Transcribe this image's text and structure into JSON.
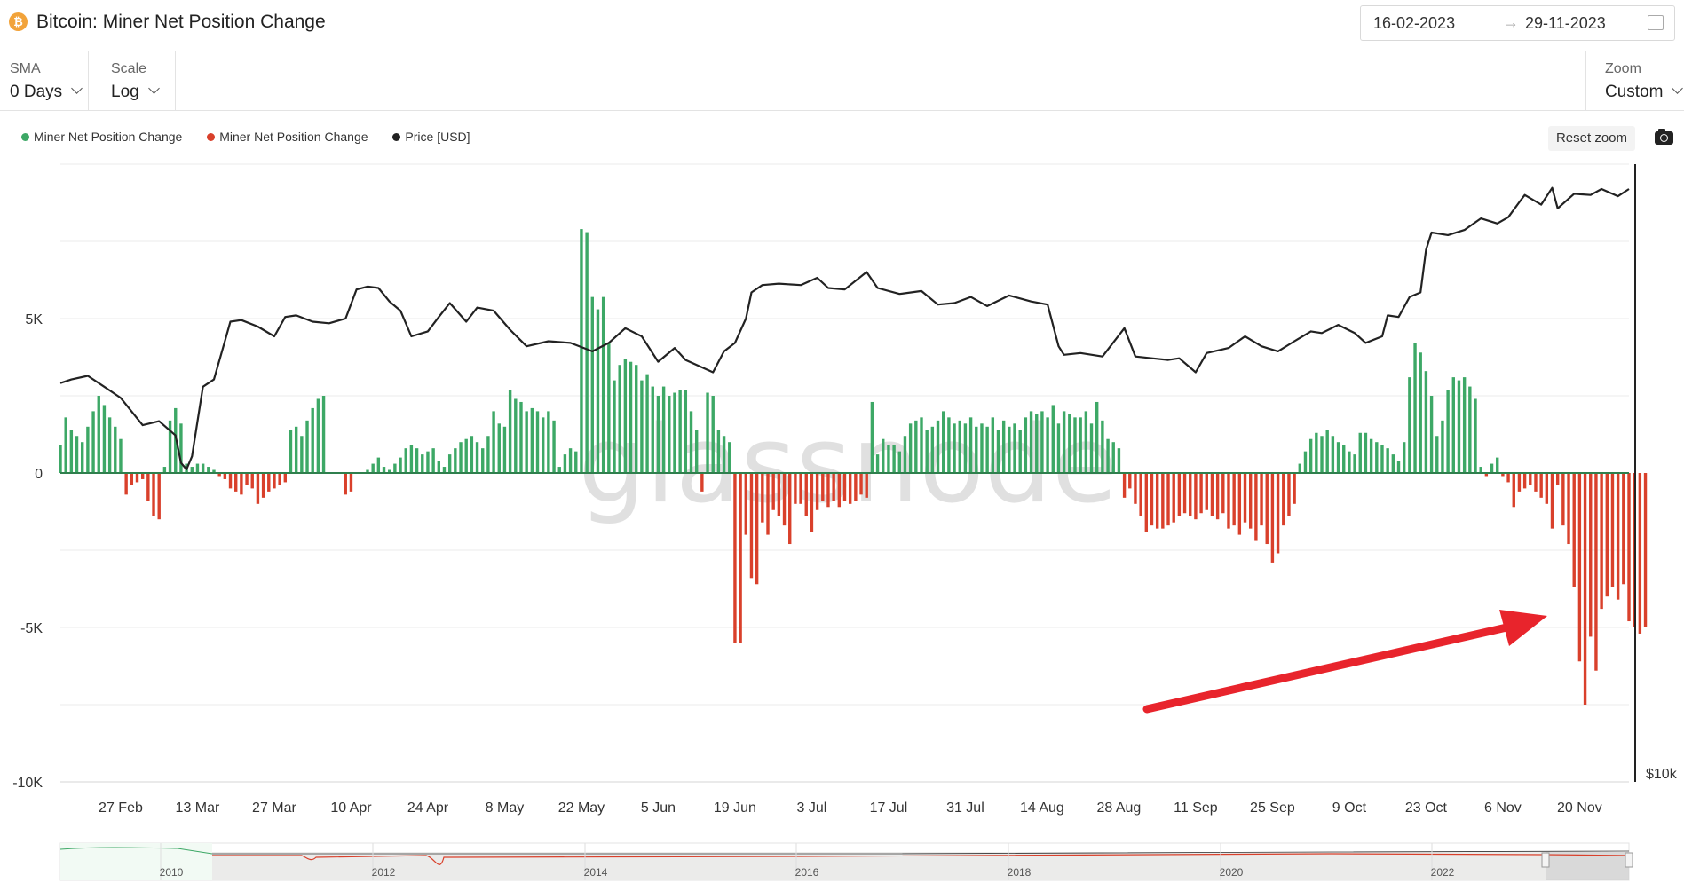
{
  "header": {
    "title": "Bitcoin: Miner Net Position Change",
    "coin_icon": "bitcoin-icon",
    "date_from": "16-02-2023",
    "date_arrow": "→",
    "date_to": "29-11-2023",
    "calendar_icon": "calendar-icon"
  },
  "controls": {
    "sma_label": "SMA",
    "sma_value": "0 Days",
    "scale_label": "Scale",
    "scale_value": "Log",
    "zoom_label": "Zoom",
    "zoom_value": "Custom"
  },
  "toolbar": {
    "reset_zoom": "Reset zoom",
    "camera_icon": "camera-icon"
  },
  "watermark": "glassnode",
  "annotation": {
    "type": "red arrow",
    "color": "#e8242c",
    "points_to": "late-November outflows"
  },
  "chart_data": {
    "type": "bar",
    "title": "Bitcoin: Miner Net Position Change",
    "legend": [
      {
        "name": "Miner Net Position Change",
        "color": "#3da866"
      },
      {
        "name": "Miner Net Position Change",
        "color": "#d9402b"
      },
      {
        "name": "Price [USD]",
        "color": "#222222"
      }
    ],
    "legend_position": "top-left",
    "colors": {
      "positive": "#3da866",
      "negative": "#d9402b",
      "price": "#222222"
    },
    "x_range": [
      "2023-02-16",
      "2023-11-29"
    ],
    "x_ticks": [
      "27 Feb",
      "13 Mar",
      "27 Mar",
      "10 Apr",
      "24 Apr",
      "8 May",
      "22 May",
      "5 Jun",
      "19 Jun",
      "3 Jul",
      "17 Jul",
      "31 Jul",
      "14 Aug",
      "28 Aug",
      "11 Sep",
      "25 Sep",
      "9 Oct",
      "23 Oct",
      "6 Nov",
      "20 Nov"
    ],
    "y_left": {
      "ticks": [
        "5K",
        "0",
        "-5K",
        "-10K"
      ],
      "range": [
        -10000,
        10000
      ]
    },
    "y_right": {
      "scale": "log",
      "ticks": [
        "$10k"
      ]
    },
    "grid": true,
    "series": [
      {
        "name": "Miner Net Position Change",
        "start_date": "2023-02-16",
        "values": [
          900,
          1800,
          1400,
          1200,
          1000,
          1500,
          2000,
          2500,
          2200,
          1800,
          1500,
          1100,
          -700,
          -400,
          -300,
          -200,
          -900,
          -1400,
          -1500,
          200,
          1700,
          2100,
          1600,
          300,
          200,
          300,
          300,
          200,
          100,
          -100,
          -200,
          -500,
          -600,
          -700,
          -400,
          -500,
          -1000,
          -800,
          -600,
          -500,
          -400,
          -300,
          1400,
          1500,
          1200,
          1700,
          2100,
          2400,
          2500,
          0,
          0,
          0,
          -700,
          -600,
          0,
          0,
          100,
          300,
          500,
          200,
          100,
          300,
          500,
          800,
          900,
          800,
          600,
          700,
          800,
          400,
          200,
          600,
          800,
          1000,
          1100,
          1200,
          1000,
          800,
          1200,
          2000,
          1600,
          1500,
          2700,
          2400,
          2300,
          2000,
          2100,
          2000,
          1800,
          2000,
          1700,
          200,
          600,
          800,
          700,
          7900,
          7800,
          5700,
          5300,
          5700,
          4200,
          3000,
          3500,
          3700,
          3600,
          3500,
          3000,
          3200,
          2800,
          2500,
          2800,
          2500,
          2600,
          2700,
          2700,
          2000,
          1400,
          -600,
          2600,
          2500,
          1400,
          1200,
          1000,
          -5500,
          -5500,
          -2000,
          -3400,
          -3600,
          -1600,
          -2000,
          -1200,
          -1400,
          -1700,
          -2300,
          -1000,
          -1000,
          -1400,
          -1900,
          -1200,
          -900,
          -1100,
          -900,
          -1100,
          -900,
          -1000,
          -900,
          -700,
          -800,
          2300,
          600,
          1100,
          900,
          900,
          700,
          1200,
          1600,
          1700,
          1800,
          1400,
          1500,
          1700,
          2000,
          1800,
          1600,
          1700,
          1600,
          1800,
          1500,
          1600,
          1500,
          1800,
          1400,
          1700,
          1500,
          1600,
          1400,
          1800,
          2000,
          1900,
          2000,
          1800,
          2200,
          1600,
          2000,
          1900,
          1800,
          1800,
          2000,
          1600,
          2300,
          1700,
          1100,
          1000,
          800,
          -800,
          -500,
          -1000,
          -1400,
          -1900,
          -1700,
          -1800,
          -1800,
          -1700,
          -1600,
          -1400,
          -1300,
          -1400,
          -1500,
          -1300,
          -1200,
          -1400,
          -1500,
          -1300,
          -1800,
          -1700,
          -2000,
          -1600,
          -1800,
          -2200,
          -1700,
          -2300,
          -2900,
          -2600,
          -1700,
          -1400,
          -1000,
          300,
          700,
          1100,
          1300,
          1200,
          1400,
          1200,
          1000,
          900,
          700,
          600,
          1300,
          1300,
          1100,
          1000,
          900,
          800,
          600,
          400,
          1000,
          3100,
          4200,
          3900,
          3300,
          2500,
          1200,
          1700,
          2700,
          3100,
          3000,
          3100,
          2800,
          2400,
          200,
          -100,
          300,
          500,
          -100,
          -300,
          -1100,
          -600,
          -500,
          -400,
          -600,
          -800,
          -1000,
          -1800,
          -400,
          -1700,
          -2300,
          -3700,
          -6100,
          -7500,
          -5300,
          -6400,
          -4400,
          -4000,
          -3700,
          -4100,
          -3600,
          -4800,
          -5000,
          -5200,
          -5000
        ]
      },
      {
        "name": "Price [USD]",
        "points": [
          [
            "2023-02-16",
            24500
          ],
          [
            "2023-02-18",
            24700
          ],
          [
            "2023-02-21",
            24900
          ],
          [
            "2023-02-24",
            24300
          ],
          [
            "2023-02-27",
            23700
          ],
          [
            "2023-03-03",
            22300
          ],
          [
            "2023-03-06",
            22500
          ],
          [
            "2023-03-09",
            21800
          ],
          [
            "2023-03-10",
            20500
          ],
          [
            "2023-03-11",
            20200
          ],
          [
            "2023-03-12",
            20800
          ],
          [
            "2023-03-13",
            22500
          ],
          [
            "2023-03-14",
            24300
          ],
          [
            "2023-03-16",
            24700
          ],
          [
            "2023-03-18",
            26900
          ],
          [
            "2023-03-19",
            28100
          ],
          [
            "2023-03-21",
            28200
          ],
          [
            "2023-03-24",
            27800
          ],
          [
            "2023-03-27",
            27200
          ],
          [
            "2023-03-29",
            28400
          ],
          [
            "2023-03-31",
            28500
          ],
          [
            "2023-04-03",
            28100
          ],
          [
            "2023-04-06",
            28000
          ],
          [
            "2023-04-09",
            28300
          ],
          [
            "2023-04-11",
            30200
          ],
          [
            "2023-04-13",
            30400
          ],
          [
            "2023-04-15",
            30300
          ],
          [
            "2023-04-17",
            29400
          ],
          [
            "2023-04-19",
            28800
          ],
          [
            "2023-04-21",
            27200
          ],
          [
            "2023-04-24",
            27500
          ],
          [
            "2023-04-26",
            28400
          ],
          [
            "2023-04-28",
            29300
          ],
          [
            "2023-05-01",
            28100
          ],
          [
            "2023-05-03",
            29000
          ],
          [
            "2023-05-06",
            28800
          ],
          [
            "2023-05-09",
            27600
          ],
          [
            "2023-05-12",
            26600
          ],
          [
            "2023-05-16",
            26900
          ],
          [
            "2023-05-20",
            26800
          ],
          [
            "2023-05-24",
            26300
          ],
          [
            "2023-05-27",
            26800
          ],
          [
            "2023-05-30",
            27700
          ],
          [
            "2023-06-02",
            27200
          ],
          [
            "2023-06-05",
            25700
          ],
          [
            "2023-06-08",
            26500
          ],
          [
            "2023-06-10",
            25800
          ],
          [
            "2023-06-15",
            25100
          ],
          [
            "2023-06-17",
            26300
          ],
          [
            "2023-06-19",
            26800
          ],
          [
            "2023-06-21",
            28300
          ],
          [
            "2023-06-22",
            30000
          ],
          [
            "2023-06-24",
            30500
          ],
          [
            "2023-06-27",
            30600
          ],
          [
            "2023-07-01",
            30500
          ],
          [
            "2023-07-04",
            31000
          ],
          [
            "2023-07-06",
            30300
          ],
          [
            "2023-07-09",
            30200
          ],
          [
            "2023-07-13",
            31400
          ],
          [
            "2023-07-15",
            30300
          ],
          [
            "2023-07-19",
            29900
          ],
          [
            "2023-07-23",
            30100
          ],
          [
            "2023-07-26",
            29200
          ],
          [
            "2023-07-29",
            29300
          ],
          [
            "2023-08-01",
            29700
          ],
          [
            "2023-08-04",
            29100
          ],
          [
            "2023-08-08",
            29800
          ],
          [
            "2023-08-12",
            29400
          ],
          [
            "2023-08-15",
            29200
          ],
          [
            "2023-08-17",
            26600
          ],
          [
            "2023-08-18",
            26100
          ],
          [
            "2023-08-21",
            26200
          ],
          [
            "2023-08-25",
            26000
          ],
          [
            "2023-08-29",
            27700
          ],
          [
            "2023-08-31",
            26000
          ],
          [
            "2023-09-03",
            25900
          ],
          [
            "2023-09-06",
            25800
          ],
          [
            "2023-09-08",
            25900
          ],
          [
            "2023-09-11",
            25100
          ],
          [
            "2023-09-13",
            26200
          ],
          [
            "2023-09-17",
            26500
          ],
          [
            "2023-09-20",
            27200
          ],
          [
            "2023-09-23",
            26600
          ],
          [
            "2023-09-26",
            26300
          ],
          [
            "2023-09-29",
            26900
          ],
          [
            "2023-10-02",
            27500
          ],
          [
            "2023-10-04",
            27400
          ],
          [
            "2023-10-07",
            27900
          ],
          [
            "2023-10-10",
            27400
          ],
          [
            "2023-10-12",
            26800
          ],
          [
            "2023-10-15",
            27200
          ],
          [
            "2023-10-16",
            28500
          ],
          [
            "2023-10-18",
            28400
          ],
          [
            "2023-10-20",
            29700
          ],
          [
            "2023-10-22",
            30000
          ],
          [
            "2023-10-23",
            33000
          ],
          [
            "2023-10-24",
            34300
          ],
          [
            "2023-10-27",
            34100
          ],
          [
            "2023-10-30",
            34500
          ],
          [
            "2023-11-02",
            35400
          ],
          [
            "2023-11-05",
            35000
          ],
          [
            "2023-11-07",
            35500
          ],
          [
            "2023-11-09",
            36700
          ],
          [
            "2023-11-10",
            37300
          ],
          [
            "2023-11-13",
            36500
          ],
          [
            "2023-11-15",
            37900
          ],
          [
            "2023-11-16",
            36200
          ],
          [
            "2023-11-19",
            37400
          ],
          [
            "2023-11-22",
            37300
          ],
          [
            "2023-11-24",
            37800
          ],
          [
            "2023-11-27",
            37200
          ],
          [
            "2023-11-29",
            37800
          ]
        ]
      }
    ]
  },
  "navigator": {
    "years": [
      "2010",
      "2012",
      "2014",
      "2016",
      "2018",
      "2020",
      "2022"
    ]
  }
}
